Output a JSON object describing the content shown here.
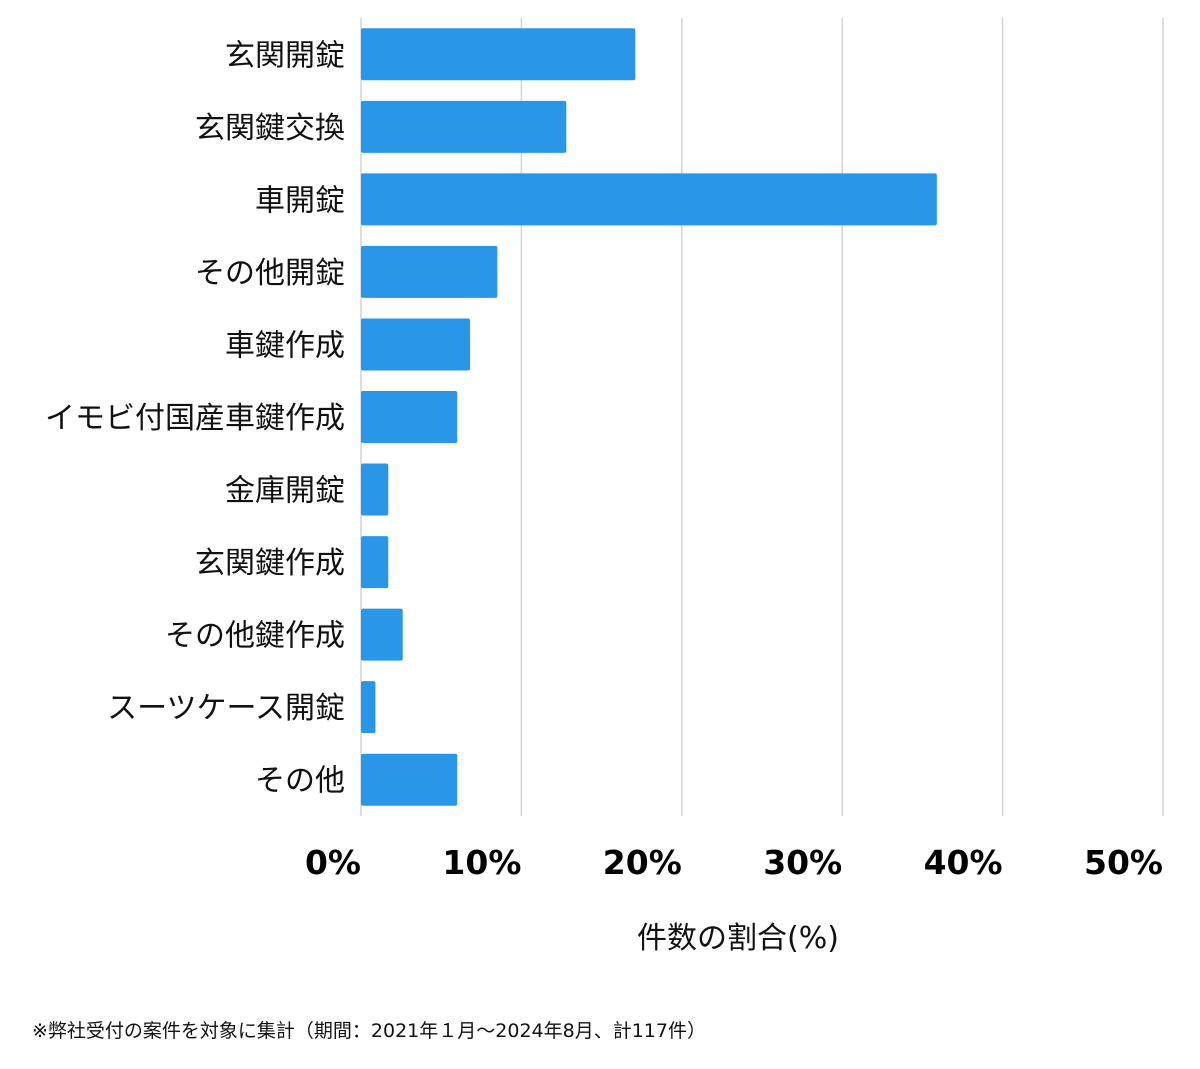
{
  "chart_data": {
    "type": "bar",
    "orientation": "horizontal",
    "categories": [
      "玄関開錠",
      "玄関鍵交換",
      "車開錠",
      "その他開錠",
      "車鍵作成",
      "イモビ付国産車鍵作成",
      "金庫開錠",
      "玄関鍵作成",
      "その他鍵作成",
      "スーツケース開錠",
      "その他"
    ],
    "values": [
      17.1,
      12.8,
      35.9,
      8.5,
      6.8,
      6.0,
      1.7,
      1.7,
      2.6,
      0.9,
      6.0
    ],
    "xlabel": "件数の割合(%)",
    "ylabel": "",
    "xlim": [
      0,
      50
    ],
    "x_ticks": [
      "0%",
      "10%",
      "20%",
      "30%",
      "40%",
      "50%"
    ],
    "grid": "vertical",
    "bar_color": "#2a96e8",
    "grid_color": "#d4d4d4"
  },
  "footnote": "※弊社受付の案件を対象に集計（期間：2021年１月〜2024年8月、計117件）"
}
